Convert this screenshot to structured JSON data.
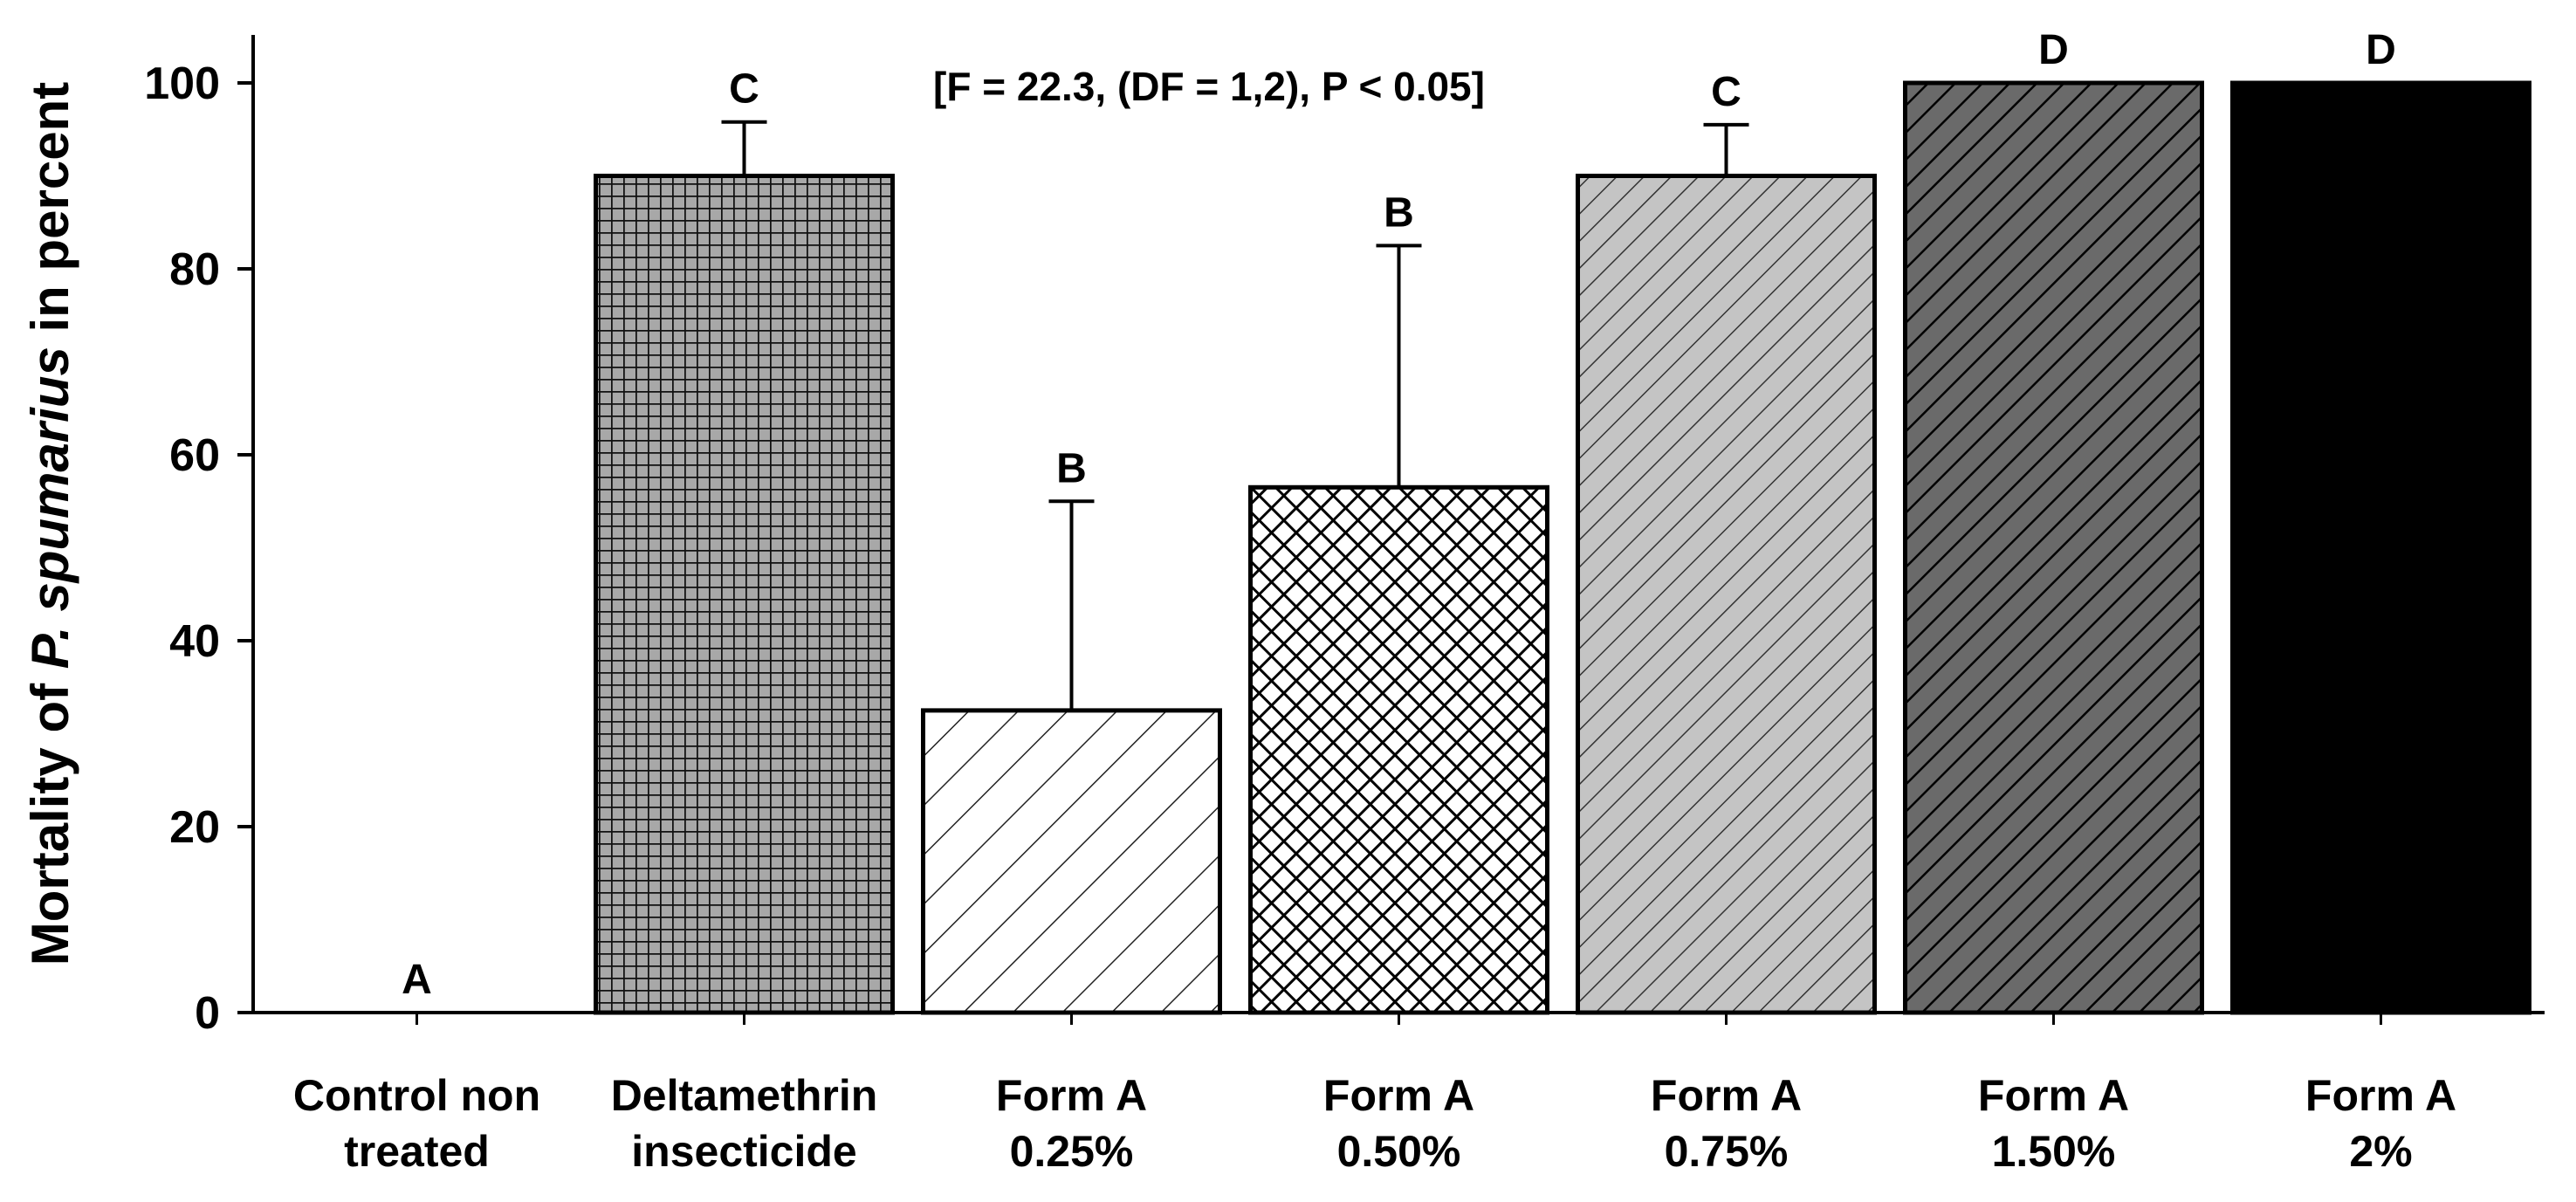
{
  "chart_data": {
    "type": "bar",
    "ylabel_parts": [
      "Mortality of ",
      "P. spumarius",
      " in percent"
    ],
    "stats_annotation": "[F = 22.3, (DF = 1,2), P < 0.05]",
    "ylim": [
      0,
      100
    ],
    "yticks": [
      0,
      20,
      40,
      60,
      80,
      100
    ],
    "grid": false,
    "categories": [
      [
        "Control non",
        "treated"
      ],
      [
        "Deltamethrin",
        "insecticide"
      ],
      [
        "Form A",
        "0.25%"
      ],
      [
        "Form A",
        "0.50%"
      ],
      [
        "Form A",
        "0.75%"
      ],
      [
        "Form A",
        "1.50%"
      ],
      [
        "Form A",
        "2%"
      ]
    ],
    "values": [
      0,
      90,
      32.5,
      56.5,
      90,
      100,
      100
    ],
    "errors": [
      0,
      5.8,
      22.5,
      26,
      5.5,
      0,
      0
    ],
    "letters": [
      "A",
      "C",
      "B",
      "B",
      "C",
      "D",
      "D"
    ],
    "patterns": [
      "none",
      "grid",
      "sparse-diagonal",
      "crosshatch",
      "light-diagonal",
      "dark-diagonal",
      "solid"
    ],
    "colors": {
      "grid_fill": "#a8a8a8",
      "light_fill": "#c4c4c4",
      "dark_fill": "#6a6a6a",
      "solid_fill": "#000000",
      "stroke": "#000000"
    }
  }
}
